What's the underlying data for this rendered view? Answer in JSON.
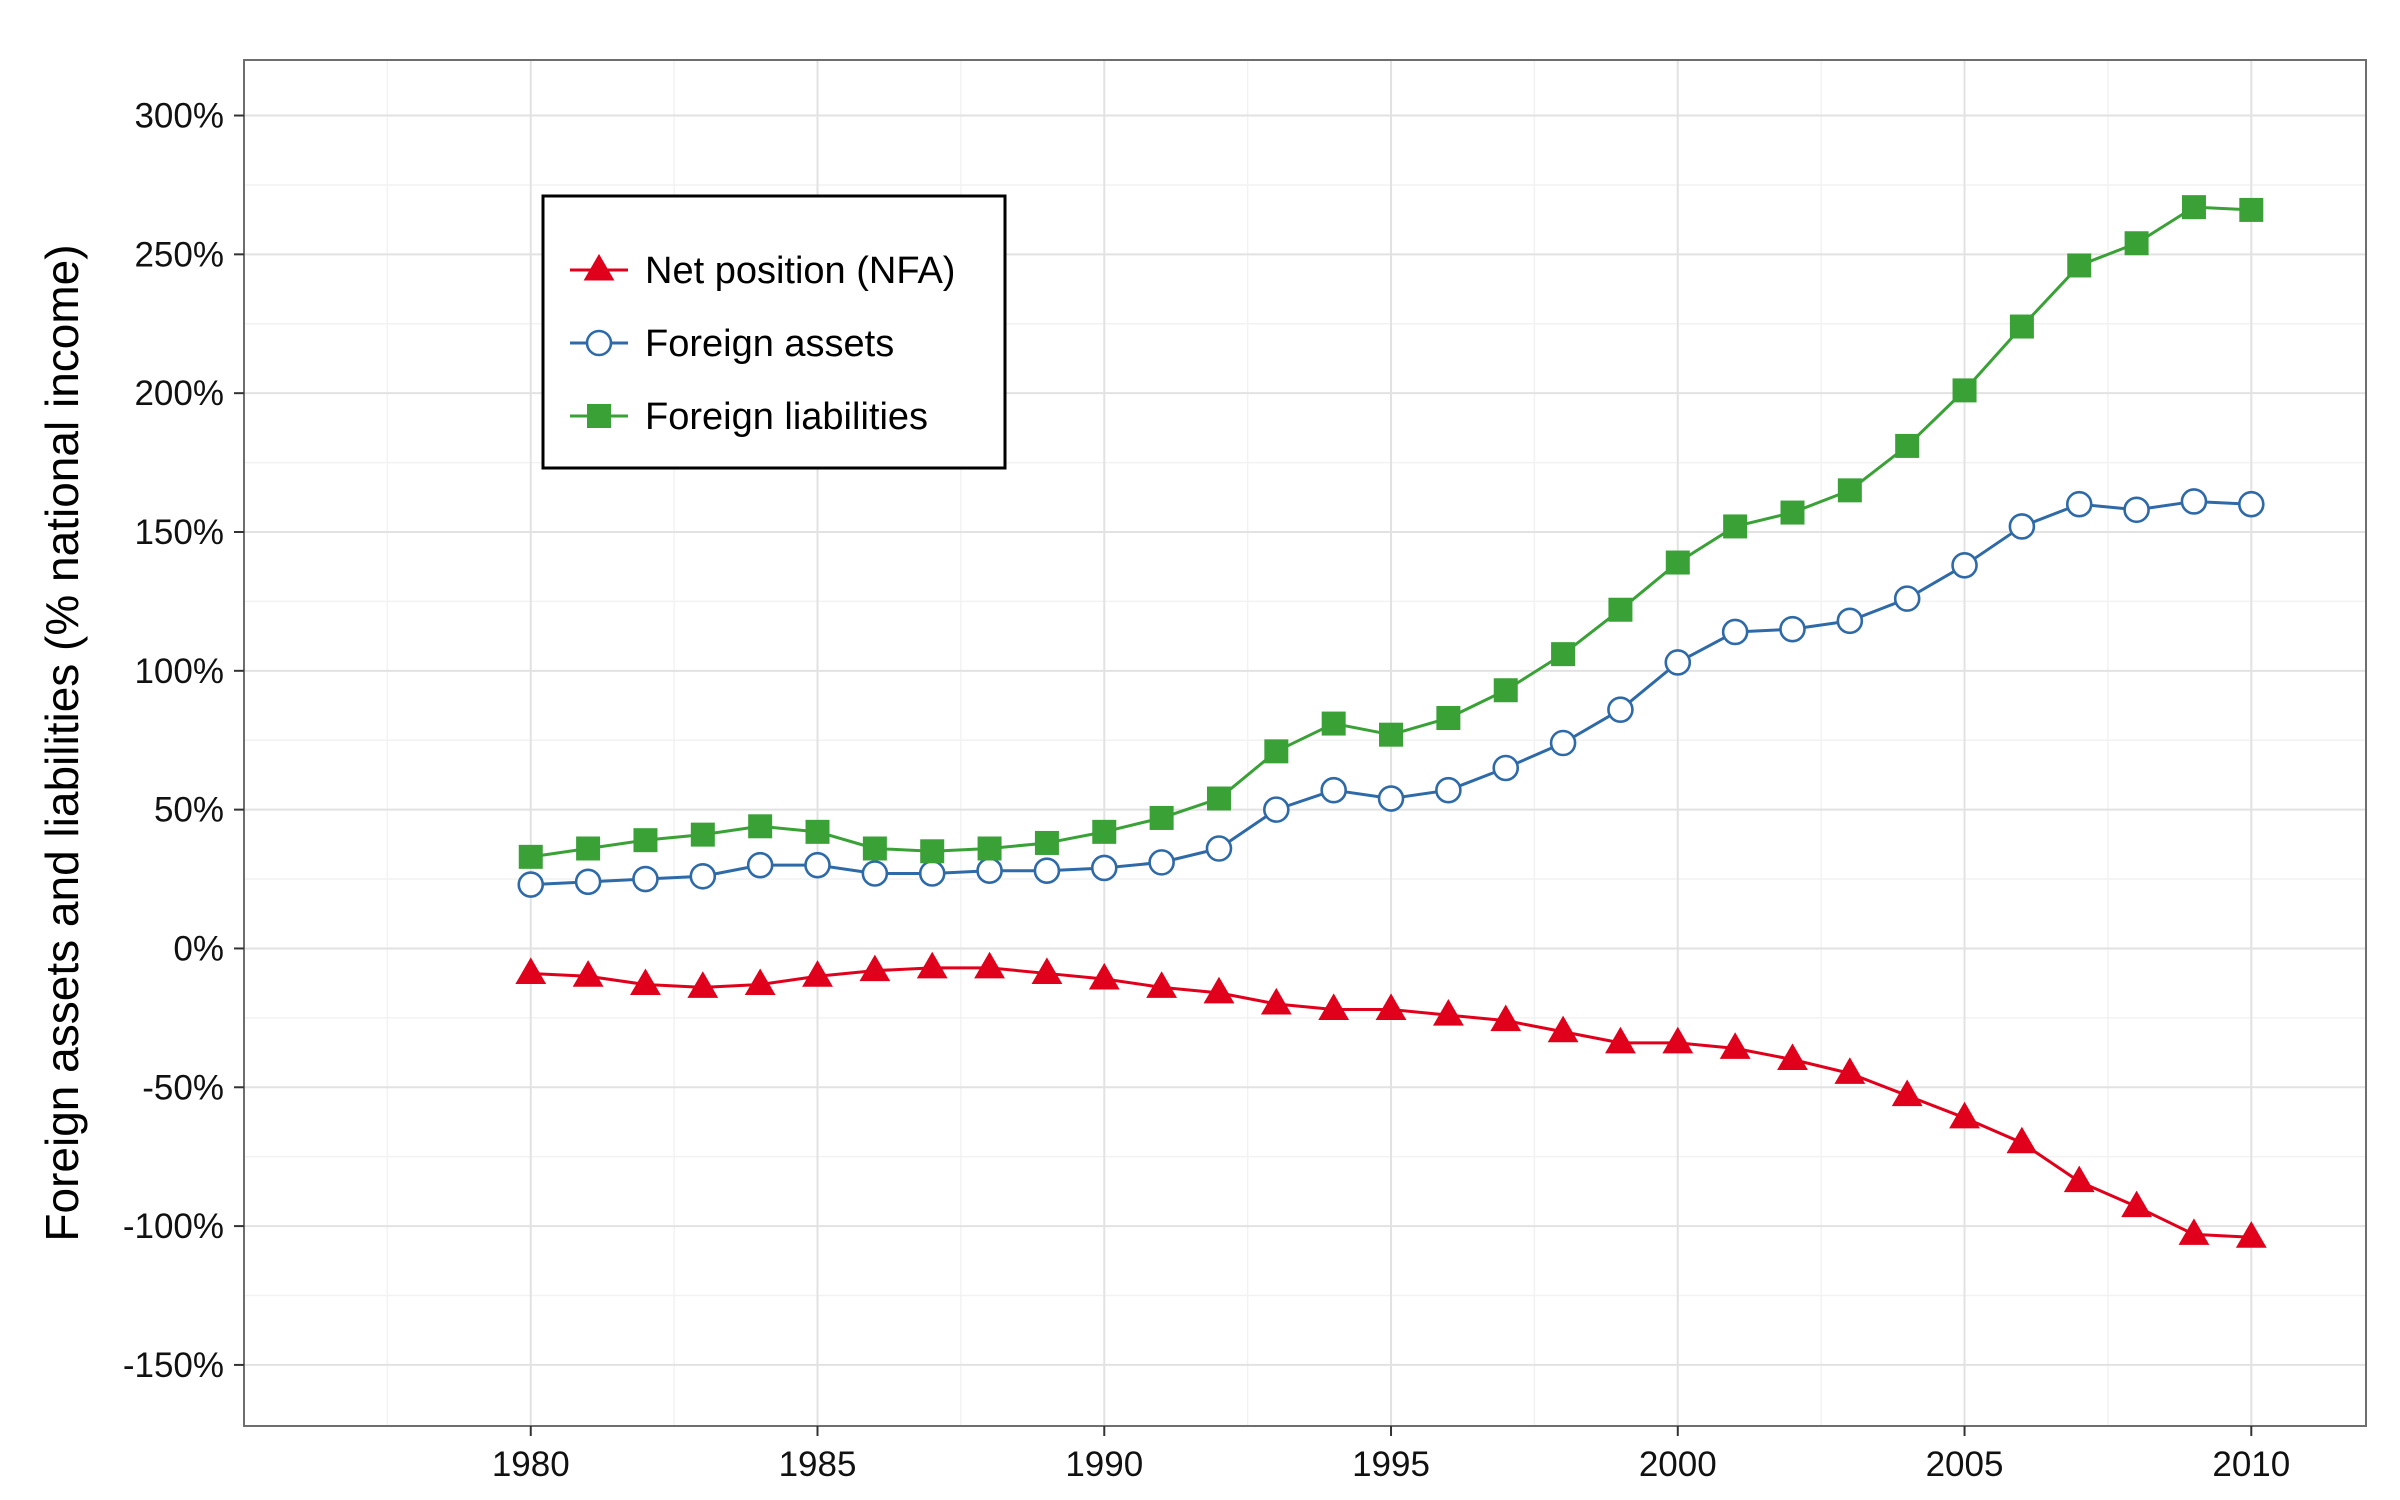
{
  "chart_data": {
    "type": "line",
    "title": "",
    "xlabel": "",
    "ylabel": "Foreign assets and liabilities (% national income)",
    "x": [
      1980,
      1981,
      1982,
      1983,
      1984,
      1985,
      1986,
      1987,
      1988,
      1989,
      1990,
      1991,
      1992,
      1993,
      1994,
      1995,
      1996,
      1997,
      1998,
      1999,
      2000,
      2001,
      2002,
      2003,
      2004,
      2005,
      2006,
      2007,
      2008,
      2009,
      2010
    ],
    "xlim": [
      1975,
      2012
    ],
    "ylim": [
      -172,
      320
    ],
    "x_ticks": [
      1980,
      1985,
      1990,
      1995,
      2000,
      2005,
      2010
    ],
    "y_ticks": [
      -150,
      -100,
      -50,
      0,
      50,
      100,
      150,
      200,
      250,
      300
    ],
    "y_tick_labels": [
      "-150%",
      "-100%",
      "-50%",
      "0%",
      "50%",
      "100%",
      "150%",
      "200%",
      "250%",
      "300%"
    ],
    "x_tick_labels": [
      "1980",
      "1985",
      "1990",
      "1995",
      "2000",
      "2005",
      "2010"
    ],
    "grid": true,
    "legend_position": "top-left",
    "series": [
      {
        "name": "Net position (NFA)",
        "color": "#e0001b",
        "marker": "triangle",
        "values": [
          -9,
          -10,
          -13,
          -14,
          -13,
          -10,
          -8,
          -7,
          -7,
          -9,
          -11,
          -14,
          -16,
          -20,
          -22,
          -22,
          -24,
          -26,
          -30,
          -34,
          -34,
          -36,
          -40,
          -45,
          -53,
          -61,
          -70,
          -84,
          -93,
          -103,
          -104
        ]
      },
      {
        "name": "Foreign assets",
        "color": "#2f6aa8",
        "marker": "circle-open",
        "values": [
          23,
          24,
          25,
          26,
          30,
          30,
          27,
          27,
          28,
          28,
          29,
          31,
          36,
          50,
          57,
          54,
          57,
          65,
          74,
          86,
          103,
          114,
          115,
          118,
          126,
          138,
          152,
          160,
          158,
          161,
          160
        ]
      },
      {
        "name": "Foreign liabilities",
        "color": "#3aa137",
        "marker": "square",
        "values": [
          33,
          36,
          39,
          41,
          44,
          42,
          36,
          35,
          36,
          38,
          42,
          47,
          54,
          71,
          81,
          77,
          83,
          93,
          106,
          122,
          139,
          152,
          157,
          165,
          181,
          201,
          224,
          246,
          254,
          267,
          266
        ]
      }
    ]
  }
}
